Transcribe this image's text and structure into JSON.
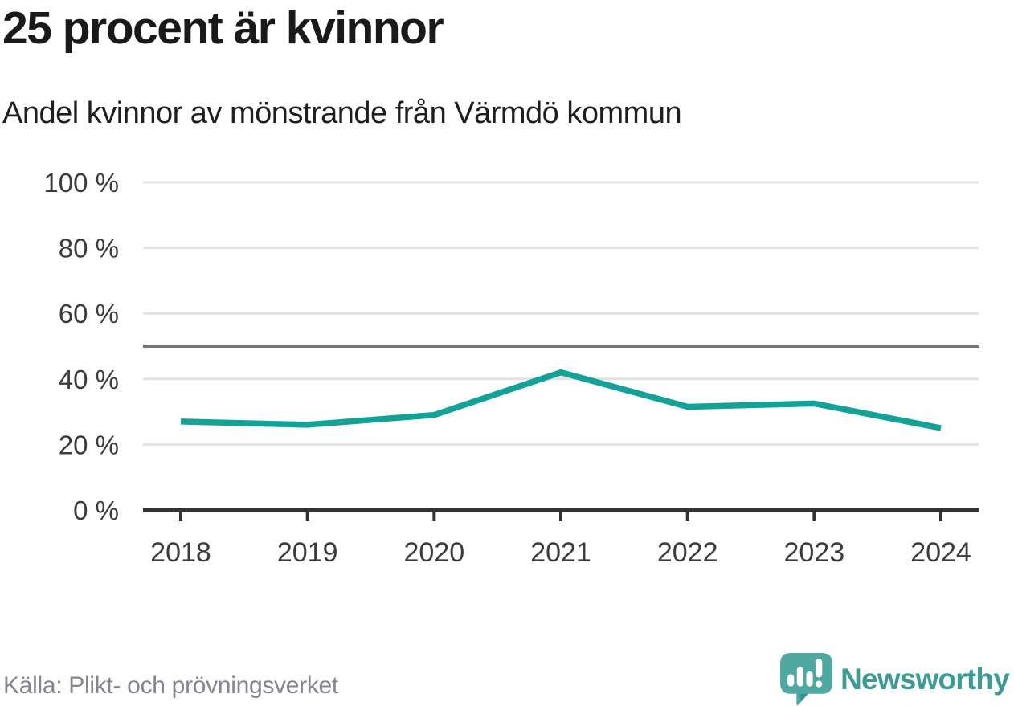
{
  "header": {
    "title": "25 procent är kvinnor",
    "subtitle": "Andel kvinnor av mönstrande från Värmdö kommun"
  },
  "chart_data": {
    "type": "line",
    "x": [
      2018,
      2019,
      2020,
      2021,
      2022,
      2023,
      2024
    ],
    "series": [
      {
        "name": "Andel kvinnor",
        "values": [
          27,
          26,
          29,
          42,
          31.5,
          32.5,
          25
        ]
      }
    ],
    "title": "25 procent är kvinnor",
    "subtitle": "Andel kvinnor av mönstrande från Värmdö kommun",
    "xlabel": "",
    "ylabel": "",
    "ylim": [
      0,
      100
    ],
    "yticks": [
      0,
      20,
      40,
      60,
      80,
      100
    ],
    "ytick_labels": [
      "0 %",
      "20 %",
      "40 %",
      "60 %",
      "80 %",
      "100 %"
    ],
    "reference_line": 50,
    "grid": true,
    "legend_position": "none",
    "colors": {
      "line": "#14a296",
      "grid": "#e2e2e2",
      "axis": "#333333",
      "reference": "#74747a",
      "tick_text": "#3b3b3b"
    }
  },
  "footer": {
    "source": "Källa: Plikt- och prövningsverket",
    "brand": "Newsworthy",
    "brand_colors": {
      "mark": "#4fa8a1",
      "mark_dark": "#37948b",
      "text": "#3e9a93"
    }
  }
}
